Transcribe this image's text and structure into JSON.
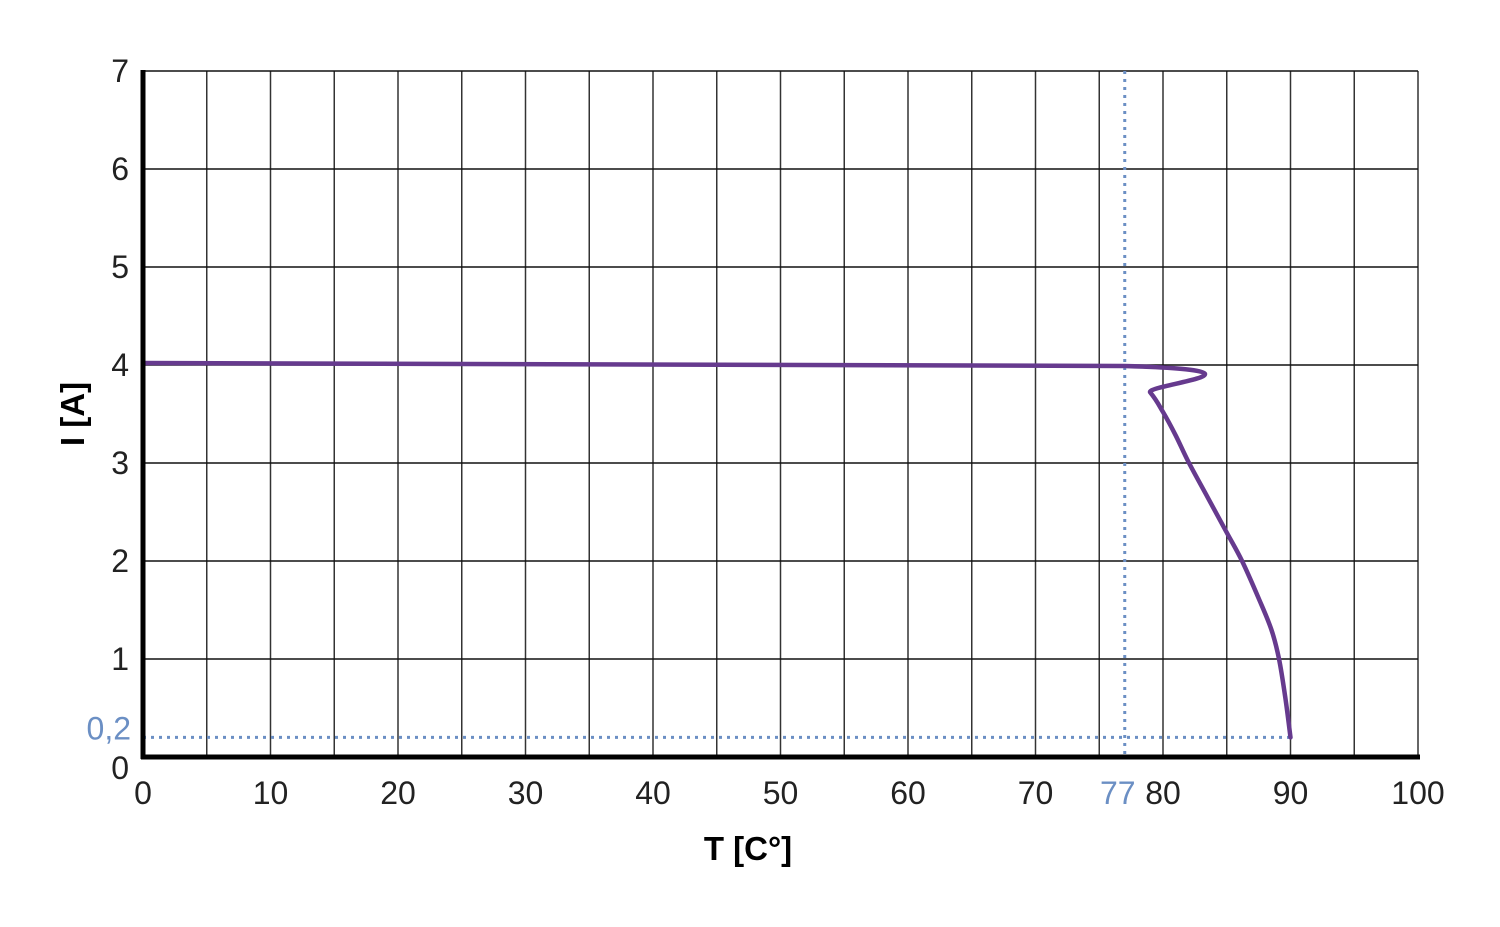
{
  "chart_data": {
    "type": "line",
    "title": "",
    "xlabel": "T [C°]",
    "ylabel": "I [A]",
    "xlim": [
      0,
      100
    ],
    "ylim": [
      0,
      7
    ],
    "grid": true,
    "x_grid_step": 5,
    "y_grid_step": 1,
    "xticks": [
      "0",
      "10",
      "20",
      "30",
      "40",
      "50",
      "60",
      "70",
      "80",
      "90",
      "100"
    ],
    "yticks": [
      "0",
      "1",
      "2",
      "3",
      "4",
      "5",
      "6",
      "7"
    ],
    "series": [
      {
        "color": "#663a8e",
        "points": [
          [
            0,
            4.02
          ],
          [
            77,
            3.99
          ],
          [
            79,
            3.72
          ],
          [
            80,
            3.52
          ],
          [
            81,
            3.28
          ],
          [
            82,
            3.01
          ],
          [
            83.5,
            2.65
          ],
          [
            85,
            2.29
          ],
          [
            86.2,
            2.0
          ],
          [
            87.5,
            1.62
          ],
          [
            88.5,
            1.3
          ],
          [
            89.1,
            1.0
          ],
          [
            89.6,
            0.6
          ],
          [
            90,
            0.2
          ]
        ]
      }
    ],
    "annotations": [
      {
        "type": "vline",
        "x": 77,
        "label": "77",
        "color": "#6b8fc4",
        "style": "dotted"
      },
      {
        "type": "hline",
        "y": 0.2,
        "label": "0,2",
        "color": "#6b8fc4",
        "style": "dotted",
        "x_end": 90
      }
    ]
  }
}
